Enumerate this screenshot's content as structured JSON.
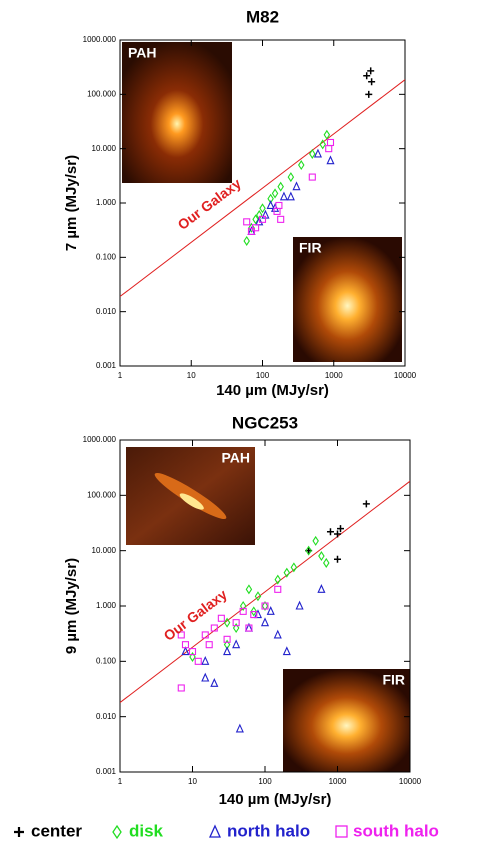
{
  "chart_data": [
    {
      "type": "scatter",
      "title": "M82",
      "xlabel": "140 µm (MJy/sr)",
      "ylabel": "7 µm (MJy/sr)",
      "log_x": true,
      "log_y": true,
      "xlim": [
        1,
        10000
      ],
      "ylim": [
        0.001,
        1000
      ],
      "xticks": [
        1,
        10,
        100,
        1000,
        10000
      ],
      "yticks": [
        0.001,
        {
          "value": 0.01,
          "label": "0.010"
        },
        {
          "value": 0.1,
          "label": "0.100"
        },
        {
          "value": 1,
          "label": "1.000"
        },
        {
          "value": 10,
          "label": "10.000"
        },
        {
          "value": 100,
          "label": "100.000"
        },
        {
          "value": 1000,
          "label": "1000.000"
        }
      ],
      "insets": [
        "PAH",
        "FIR"
      ],
      "reference_line": {
        "name": "Our Galaxy",
        "color": "#e02020",
        "x": [
          1,
          10000
        ],
        "values": [
          0.019,
          186
        ]
      },
      "series": [
        {
          "name": "center",
          "marker": "plus",
          "color": "#000000",
          "x": [
            2900,
            3300,
            3400,
            3100
          ],
          "values": [
            220,
            270,
            170,
            100
          ]
        },
        {
          "name": "disk",
          "marker": "diamond",
          "color": "#22dd22",
          "x": [
            60,
            70,
            80,
            100,
            130,
            180,
            250,
            350,
            500,
            800,
            700,
            150,
            90
          ],
          "values": [
            0.2,
            0.35,
            0.5,
            0.8,
            1.2,
            2,
            3,
            5,
            8,
            18,
            12,
            1.5,
            0.6
          ]
        },
        {
          "name": "north halo",
          "marker": "triangle",
          "color": "#2222cc",
          "x": [
            70,
            90,
            110,
            130,
            200,
            250,
            600,
            900,
            150,
            300
          ],
          "values": [
            0.3,
            0.45,
            0.6,
            0.9,
            1.3,
            1.3,
            8,
            6,
            0.8,
            2
          ]
        },
        {
          "name": "south halo",
          "marker": "square",
          "color": "#ee22ee",
          "x": [
            60,
            70,
            80,
            160,
            170,
            180,
            500,
            900,
            850,
            100
          ],
          "values": [
            0.45,
            0.3,
            0.35,
            0.7,
            0.9,
            0.5,
            3,
            13,
            10,
            0.5
          ]
        }
      ]
    },
    {
      "type": "scatter",
      "title": "NGC253",
      "xlabel": "140 µm (MJy/sr)",
      "ylabel": "9 µm (MJy/sr)",
      "log_x": true,
      "log_y": true,
      "xlim": [
        1,
        10000
      ],
      "ylim": [
        0.001,
        1000
      ],
      "xticks": [
        1,
        10,
        100,
        1000,
        10000
      ],
      "yticks": [
        0.001,
        {
          "value": 0.01,
          "label": "0.010"
        },
        {
          "value": 0.1,
          "label": "0.100"
        },
        {
          "value": 1,
          "label": "1.000"
        },
        {
          "value": 10,
          "label": "10.000"
        },
        {
          "value": 100,
          "label": "100.000"
        },
        {
          "value": 1000,
          "label": "1000.000"
        }
      ],
      "insets": [
        "PAH",
        "FIR"
      ],
      "reference_line": {
        "name": "Our Galaxy",
        "color": "#e02020",
        "x": [
          1,
          10000
        ],
        "values": [
          0.018,
          180
        ]
      },
      "series": [
        {
          "marker": "plus",
          "color": "#000000",
          "x": [
            1000,
            1100,
            800,
            1000,
            2500,
            400
          ],
          "values": [
            20,
            25,
            22,
            7,
            70,
            10
          ]
        },
        {
          "marker": "diamond",
          "color": "#22dd22",
          "x": [
            10,
            30,
            50,
            60,
            80,
            100,
            150,
            200,
            400,
            500,
            600,
            700,
            30,
            70,
            250,
            40
          ],
          "values": [
            0.12,
            0.5,
            1,
            2,
            1.5,
            1,
            3,
            4,
            10,
            15,
            8,
            6,
            0.2,
            0.8,
            5,
            0.4
          ]
        },
        {
          "marker": "triangle",
          "color": "#2222cc",
          "x": [
            8,
            15,
            15,
            20,
            30,
            40,
            45,
            60,
            80,
            100,
            150,
            200,
            300,
            600,
            120
          ],
          "values": [
            0.15,
            0.1,
            0.05,
            0.04,
            0.15,
            0.2,
            0.006,
            0.4,
            0.7,
            0.5,
            0.3,
            0.15,
            1,
            2,
            0.8
          ]
        },
        {
          "marker": "square",
          "color": "#ee22ee",
          "x": [
            7,
            7,
            8,
            10,
            12,
            15,
            17,
            20,
            25,
            30,
            40,
            50,
            60,
            100,
            150,
            70
          ],
          "values": [
            0.3,
            0.033,
            0.2,
            0.15,
            0.1,
            0.3,
            0.2,
            0.4,
            0.6,
            0.25,
            0.5,
            0.8,
            0.4,
            1,
            2,
            0.7
          ]
        }
      ]
    }
  ]
}
